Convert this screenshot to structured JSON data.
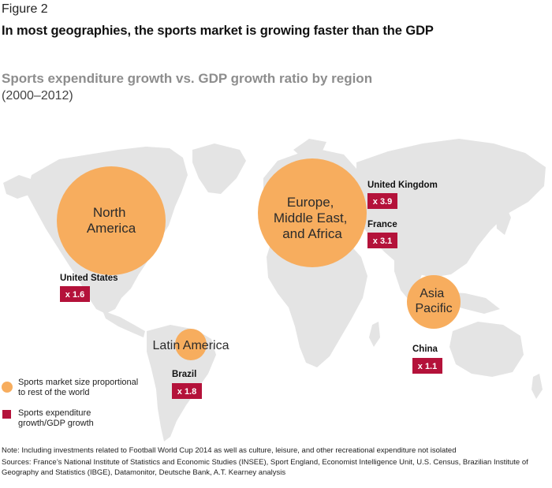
{
  "figure": {
    "label": "Figure 2",
    "title": "In most geographies, the sports market is growing faster than the GDP"
  },
  "chart_data": {
    "type": "bubble-map",
    "title": "Sports expenditure growth vs. GDP growth ratio by region",
    "subtitle": "(2000–2012)",
    "regions": [
      {
        "name": "North\nAmerica",
        "size_level": "large"
      },
      {
        "name": "Europe,\nMiddle East,\nand Africa",
        "size_level": "largest"
      },
      {
        "name": "Asia\nPacific",
        "size_level": "medium"
      },
      {
        "name": "Latin America",
        "size_level": "small"
      }
    ],
    "countries": [
      {
        "name": "United States",
        "ratio": 1.6,
        "label": "x 1.6"
      },
      {
        "name": "United Kingdom",
        "ratio": 3.9,
        "label": "x 3.9"
      },
      {
        "name": "France",
        "ratio": 3.1,
        "label": "x 3.1"
      },
      {
        "name": "China",
        "ratio": 1.1,
        "label": "x 1.1"
      },
      {
        "name": "Brazil",
        "ratio": 1.8,
        "label": "x 1.8"
      }
    ],
    "legend": [
      {
        "symbol": "circle",
        "text": "Sports market size proportional\nto rest of the world"
      },
      {
        "symbol": "square",
        "text": "Sports expenditure\ngrowth/GDP growth"
      }
    ]
  },
  "colors": {
    "bubble": "#f7ad5e",
    "ratio_box": "#b4123a",
    "land": "#e4e4e4"
  },
  "footer": {
    "note": "Note: Including investments related to Football World Cup 2014 as well as culture, leisure, and other recreational expenditure not isolated",
    "sources": "Sources: France’s National Institute of Statistics and Economic Studies (INSEE), Sport England, Economist Intelligence Unit, U.S. Census, Brazilian Institute of Geography and Statistics (IBGE), Datamonitor, Deutsche Bank, A.T. Kearney analysis"
  }
}
